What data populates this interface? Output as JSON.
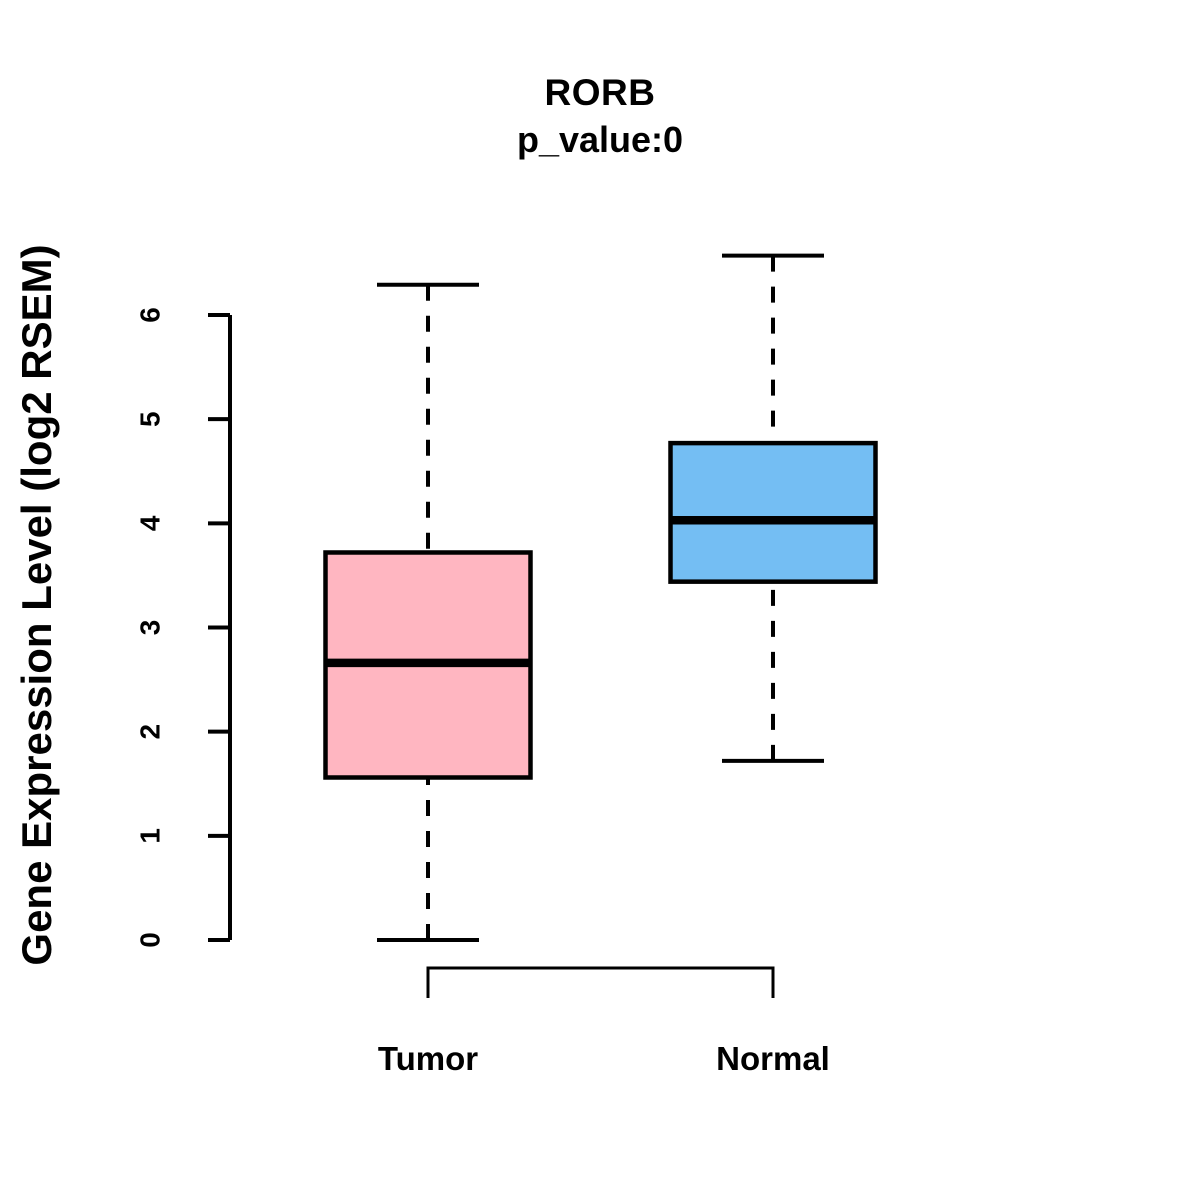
{
  "figure": {
    "title": "RORB",
    "subtitle": "p_value:0",
    "ylabel": "Gene Expression Level (log2 RSEM)",
    "background_color": "#ffffff",
    "line_color": "#000000"
  },
  "chart_data": {
    "type": "boxplot",
    "title": "RORB",
    "subtitle": "p_value:0",
    "xlabel": "",
    "ylabel": "Gene Expression Level (log2 RSEM)",
    "ylim": [
      0,
      6.6
    ],
    "yticks": [
      0,
      1,
      2,
      3,
      4,
      5,
      6
    ],
    "grid": false,
    "whisker_style": "dashed",
    "line_color": "#000000",
    "categories": [
      "Tumor",
      "Normal"
    ],
    "series": [
      {
        "name": "Tumor",
        "fill_color": "#FFB6C1",
        "whisker_low": 0.0,
        "q1": 1.56,
        "median": 2.66,
        "q3": 3.72,
        "whisker_high": 6.29
      },
      {
        "name": "Normal",
        "fill_color": "#74BEF3",
        "whisker_low": 1.72,
        "q1": 3.44,
        "median": 4.03,
        "q3": 4.77,
        "whisker_high": 6.57
      }
    ],
    "comparison_bracket": {
      "between": [
        "Tumor",
        "Normal"
      ]
    }
  }
}
